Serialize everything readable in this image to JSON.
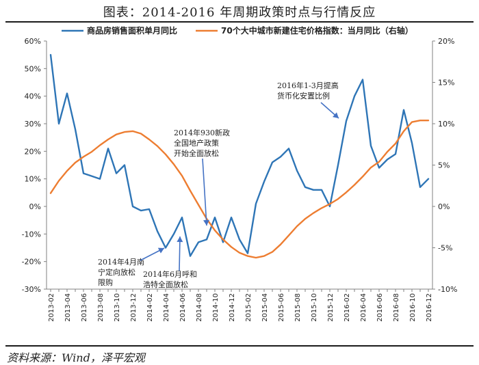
{
  "title": "图表：2014-2016 年周期政策时点与行情反应",
  "source": "资料来源：Wind，泽平宏观",
  "chart_data": {
    "type": "line",
    "categories": [
      "2013-02",
      "2013-03",
      "2013-04",
      "2013-05",
      "2013-06",
      "2013-07",
      "2013-08",
      "2013-09",
      "2013-10",
      "2013-11",
      "2013-12",
      "2014-01",
      "2014-02",
      "2014-03",
      "2014-04",
      "2014-05",
      "2014-06",
      "2014-07",
      "2014-08",
      "2014-09",
      "2014-10",
      "2014-11",
      "2014-12",
      "2015-01",
      "2015-02",
      "2015-03",
      "2015-04",
      "2015-05",
      "2015-06",
      "2015-07",
      "2015-08",
      "2015-09",
      "2015-10",
      "2015-11",
      "2015-12",
      "2016-01",
      "2016-02",
      "2016-03",
      "2016-04",
      "2016-05",
      "2016-06",
      "2016-07",
      "2016-08",
      "2016-09",
      "2016-10",
      "2016-11",
      "2016-12"
    ],
    "xtick_labels": [
      "2013-02",
      "2013-04",
      "2013-06",
      "2013-08",
      "2013-10",
      "2013-12",
      "2014-02",
      "2014-04",
      "2014-06",
      "2014-08",
      "2014-10",
      "2014-12",
      "2015-02",
      "2015-04",
      "2015-06",
      "2015-08",
      "2015-10",
      "2015-12",
      "2016-02",
      "2016-04",
      "2016-06",
      "2016-08",
      "2016-10",
      "2016-12"
    ],
    "series": [
      {
        "name": "商品房销售面积单月同比",
        "axis": "left",
        "color": "#2e75b6",
        "values": [
          55,
          30,
          41,
          28,
          12,
          11,
          10,
          21,
          12,
          15,
          0,
          -1.5,
          -1,
          -9,
          -15,
          -10,
          -4,
          -18,
          -13,
          -12,
          -4,
          -13,
          -4,
          -12,
          -17,
          1,
          9,
          16,
          18,
          21,
          13,
          7,
          6,
          6,
          0,
          15,
          31,
          40,
          46,
          22,
          14,
          17,
          19,
          35,
          23,
          7,
          10
        ]
      },
      {
        "name": "70个大中城市新建住宅价格指数：当月同比（右轴）",
        "axis": "right",
        "color": "#ed7d31",
        "values": [
          1.6,
          3.1,
          4.3,
          5.3,
          6.0,
          6.6,
          7.4,
          8.1,
          8.7,
          9.0,
          9.1,
          8.8,
          8.1,
          7.3,
          6.3,
          5.1,
          3.7,
          1.9,
          0.2,
          -1.5,
          -2.9,
          -4.0,
          -4.9,
          -5.6,
          -6.0,
          -6.2,
          -6.0,
          -5.5,
          -4.6,
          -3.5,
          -2.4,
          -1.5,
          -0.8,
          -0.2,
          0.3,
          0.9,
          1.7,
          2.6,
          3.6,
          4.7,
          5.4,
          6.6,
          7.6,
          9.1,
          10.2,
          10.4,
          10.4
        ]
      }
    ],
    "left_axis": {
      "ylim": [
        -30,
        60
      ],
      "ticks": [
        "-30%",
        "-20%",
        "-10%",
        "0%",
        "10%",
        "20%",
        "30%",
        "40%",
        "50%",
        "60%"
      ]
    },
    "right_axis": {
      "ylim": [
        -10,
        20
      ],
      "ticks": [
        "-10%",
        "-5%",
        "0%",
        "5%",
        "10%",
        "15%",
        "20%"
      ]
    },
    "annotations": [
      {
        "lines": [
          "2014年4月南",
          "宁定向放松",
          "限购"
        ]
      },
      {
        "lines": [
          "2014年6月呼和",
          "浩特全面放松"
        ]
      },
      {
        "lines": [
          "2014年930新政",
          "全国地产政策",
          "开始全面放松"
        ]
      },
      {
        "lines": [
          "2016年1-3月提高",
          "货币化安置比例"
        ]
      }
    ],
    "legend_position": "top"
  }
}
